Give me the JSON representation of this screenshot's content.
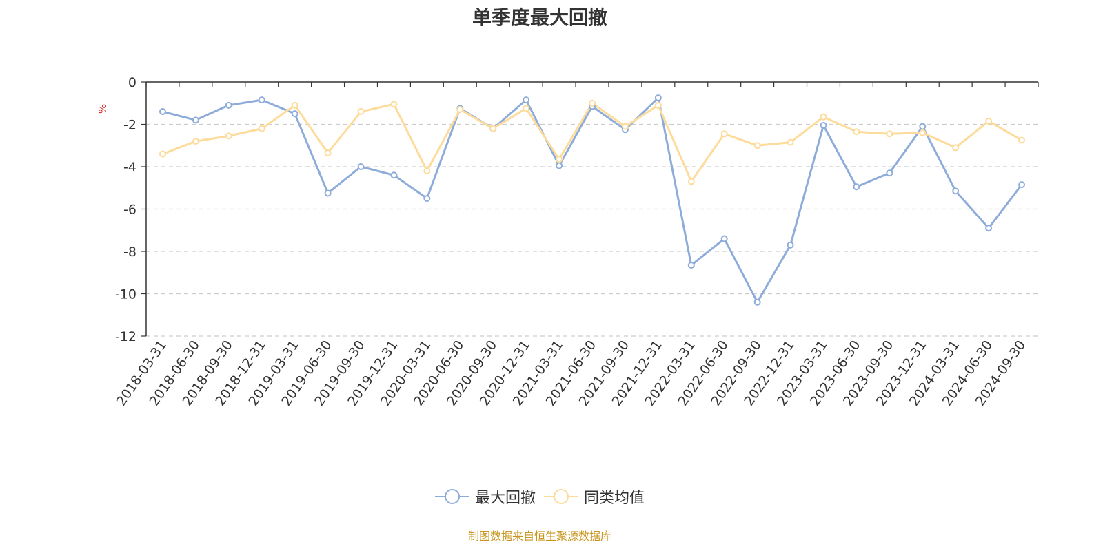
{
  "chart_data": {
    "type": "line",
    "title": "单季度最大回撤",
    "ylabel": "%",
    "ylim": [
      -12,
      0
    ],
    "yticks": [
      0,
      -2,
      -4,
      -6,
      -8,
      -10,
      -12
    ],
    "grid": true,
    "legend_position": "bottom",
    "categories": [
      "2018-03-31",
      "2018-06-30",
      "2018-09-30",
      "2018-12-31",
      "2019-03-31",
      "2019-06-30",
      "2019-09-30",
      "2019-12-31",
      "2020-03-31",
      "2020-06-30",
      "2020-09-30",
      "2020-12-31",
      "2021-03-31",
      "2021-06-30",
      "2021-09-30",
      "2021-12-31",
      "2022-03-31",
      "2022-06-30",
      "2022-09-30",
      "2022-12-31",
      "2023-03-31",
      "2023-06-30",
      "2023-09-30",
      "2023-12-31",
      "2024-03-31",
      "2024-06-30",
      "2024-09-30"
    ],
    "series": [
      {
        "name": "最大回撤",
        "color": "#8eacda",
        "values": [
          -1.4,
          -1.8,
          -1.1,
          -0.85,
          -1.5,
          -5.25,
          -4.0,
          -4.4,
          -5.5,
          -1.25,
          -2.2,
          -0.85,
          -3.95,
          -1.15,
          -2.25,
          -0.75,
          -8.65,
          -7.4,
          -10.4,
          -7.7,
          -2.05,
          -4.95,
          -4.3,
          -2.1,
          -5.15,
          -6.9,
          -4.85
        ]
      },
      {
        "name": "同类均值",
        "color": "#fddb9a",
        "values": [
          -3.4,
          -2.8,
          -2.55,
          -2.2,
          -1.1,
          -3.35,
          -1.4,
          -1.05,
          -4.2,
          -1.3,
          -2.2,
          -1.25,
          -3.65,
          -1.0,
          -2.1,
          -1.1,
          -4.7,
          -2.45,
          -3.0,
          -2.85,
          -1.65,
          -2.35,
          -2.45,
          -2.4,
          -3.1,
          -1.85,
          -2.75
        ]
      }
    ]
  },
  "source_text": "制图数据来自恒生聚源数据库"
}
